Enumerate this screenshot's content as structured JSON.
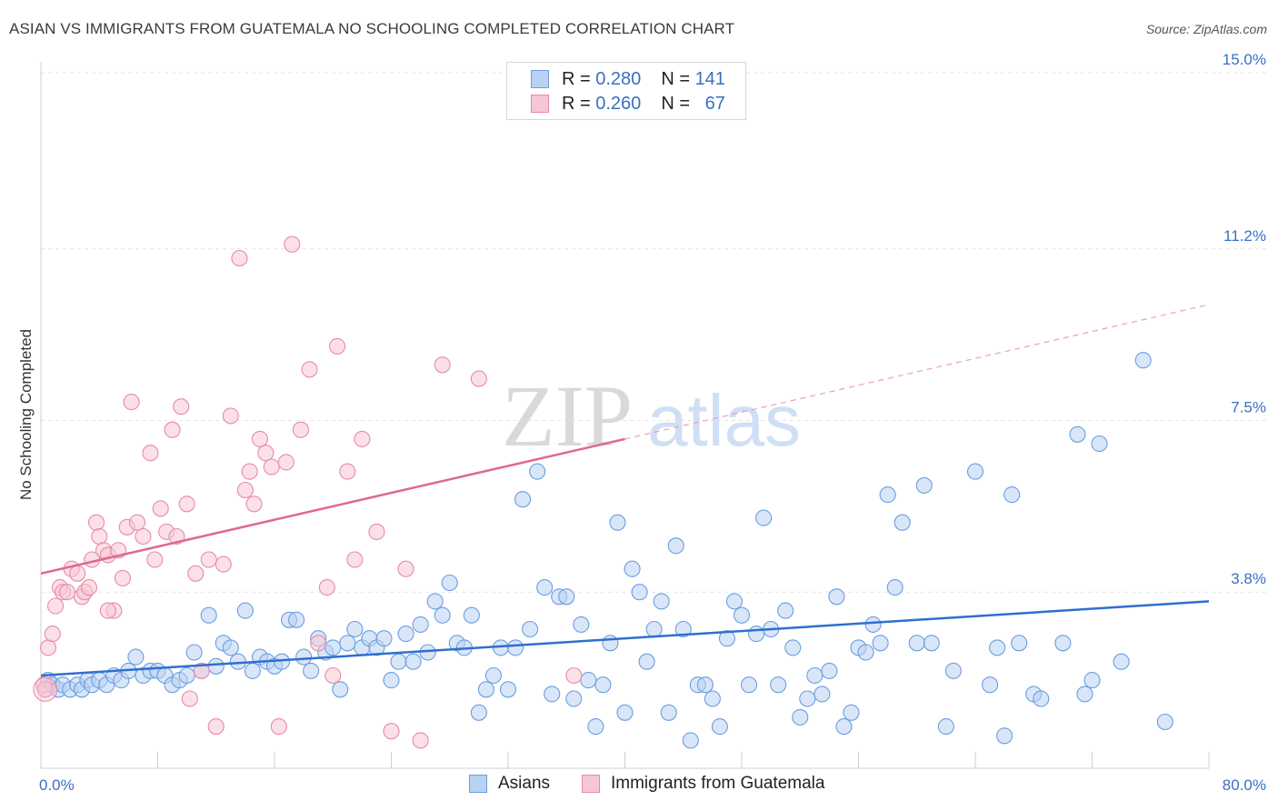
{
  "title": "ASIAN VS IMMIGRANTS FROM GUATEMALA NO SCHOOLING COMPLETED CORRELATION CHART",
  "source": "Source: ZipAtlas.com",
  "watermark": {
    "zip": "ZIP",
    "atlas": "atlas"
  },
  "stats": [
    {
      "r_label": "R =",
      "r_value": "0.280",
      "n_label": "N =",
      "n_value": "141"
    },
    {
      "r_label": "R =",
      "r_value": "0.260",
      "n_label": "N =",
      "n_value": "67"
    }
  ],
  "chart_data": {
    "type": "scatter",
    "ylabel": "No Schooling Completed",
    "xlim": [
      0,
      80
    ],
    "ylim": [
      0,
      15
    ],
    "x_tick_labels": [
      "0.0%",
      "80.0%"
    ],
    "y_ticks": [
      3.8,
      7.5,
      11.2,
      15.0
    ],
    "y_tick_labels": [
      "3.8%",
      "7.5%",
      "11.2%",
      "15.0%"
    ],
    "grid": true,
    "legend": "top-center",
    "series": [
      {
        "name": "Asians",
        "color": "#6a9ee0",
        "fill": "#b9d2f3",
        "trend": {
          "x0": 0,
          "y0": 2.0,
          "x1": 80,
          "y1": 3.6
        },
        "points": [
          [
            0.3,
            1.7
          ],
          [
            0.5,
            1.9
          ],
          [
            0.8,
            1.8
          ],
          [
            1.2,
            1.7
          ],
          [
            1.5,
            1.8
          ],
          [
            2.0,
            1.7
          ],
          [
            2.5,
            1.8
          ],
          [
            2.8,
            1.7
          ],
          [
            3.2,
            1.9
          ],
          [
            3.5,
            1.8
          ],
          [
            4.0,
            1.9
          ],
          [
            4.5,
            1.8
          ],
          [
            5.0,
            2.0
          ],
          [
            5.5,
            1.9
          ],
          [
            6.0,
            2.1
          ],
          [
            6.5,
            2.4
          ],
          [
            7.0,
            2.0
          ],
          [
            7.5,
            2.1
          ],
          [
            8.0,
            2.1
          ],
          [
            8.5,
            2.0
          ],
          [
            9.0,
            1.8
          ],
          [
            9.5,
            1.9
          ],
          [
            10.0,
            2.0
          ],
          [
            10.5,
            2.5
          ],
          [
            11.0,
            2.1
          ],
          [
            11.5,
            3.3
          ],
          [
            12.0,
            2.2
          ],
          [
            12.5,
            2.7
          ],
          [
            13.0,
            2.6
          ],
          [
            13.5,
            2.3
          ],
          [
            14.0,
            3.4
          ],
          [
            14.5,
            2.1
          ],
          [
            15.0,
            2.4
          ],
          [
            15.5,
            2.3
          ],
          [
            16.0,
            2.2
          ],
          [
            16.5,
            2.3
          ],
          [
            17.0,
            3.2
          ],
          [
            17.5,
            3.2
          ],
          [
            18.0,
            2.4
          ],
          [
            18.5,
            2.1
          ],
          [
            19.0,
            2.8
          ],
          [
            19.5,
            2.5
          ],
          [
            20.0,
            2.6
          ],
          [
            20.5,
            1.7
          ],
          [
            21.0,
            2.7
          ],
          [
            21.5,
            3.0
          ],
          [
            22.0,
            2.6
          ],
          [
            22.5,
            2.8
          ],
          [
            23.0,
            2.6
          ],
          [
            23.5,
            2.8
          ],
          [
            24.0,
            1.9
          ],
          [
            24.5,
            2.3
          ],
          [
            25.0,
            2.9
          ],
          [
            25.5,
            2.3
          ],
          [
            26.0,
            3.1
          ],
          [
            26.5,
            2.5
          ],
          [
            27.0,
            3.6
          ],
          [
            27.5,
            3.3
          ],
          [
            28.0,
            4.0
          ],
          [
            28.5,
            2.7
          ],
          [
            29.0,
            2.6
          ],
          [
            29.5,
            3.3
          ],
          [
            30.0,
            1.2
          ],
          [
            30.5,
            1.7
          ],
          [
            31.0,
            2.0
          ],
          [
            31.5,
            2.6
          ],
          [
            32.0,
            1.7
          ],
          [
            32.5,
            2.6
          ],
          [
            33.0,
            5.8
          ],
          [
            33.5,
            3.0
          ],
          [
            34.0,
            6.4
          ],
          [
            34.5,
            3.9
          ],
          [
            35.0,
            1.6
          ],
          [
            35.5,
            3.7
          ],
          [
            36.0,
            3.7
          ],
          [
            36.5,
            1.5
          ],
          [
            37.0,
            3.1
          ],
          [
            37.5,
            1.9
          ],
          [
            38.0,
            0.9
          ],
          [
            38.5,
            1.8
          ],
          [
            39.0,
            2.7
          ],
          [
            39.5,
            5.3
          ],
          [
            40.0,
            1.2
          ],
          [
            40.5,
            4.3
          ],
          [
            41.0,
            3.8
          ],
          [
            41.5,
            2.3
          ],
          [
            42.0,
            3.0
          ],
          [
            42.5,
            3.6
          ],
          [
            43.0,
            1.2
          ],
          [
            43.5,
            4.8
          ],
          [
            44.0,
            3.0
          ],
          [
            44.5,
            0.6
          ],
          [
            45.0,
            1.8
          ],
          [
            45.5,
            1.8
          ],
          [
            46.0,
            1.5
          ],
          [
            46.5,
            0.9
          ],
          [
            47.0,
            2.8
          ],
          [
            47.5,
            3.6
          ],
          [
            48.0,
            3.3
          ],
          [
            48.5,
            1.8
          ],
          [
            49.0,
            2.9
          ],
          [
            49.5,
            5.4
          ],
          [
            50.0,
            3.0
          ],
          [
            50.5,
            1.8
          ],
          [
            51.0,
            3.4
          ],
          [
            51.5,
            2.6
          ],
          [
            52.0,
            1.1
          ],
          [
            52.5,
            1.5
          ],
          [
            53.0,
            2.0
          ],
          [
            53.5,
            1.6
          ],
          [
            54.0,
            2.1
          ],
          [
            54.5,
            3.7
          ],
          [
            55.0,
            0.9
          ],
          [
            55.5,
            1.2
          ],
          [
            56.0,
            2.6
          ],
          [
            56.5,
            2.5
          ],
          [
            57.0,
            3.1
          ],
          [
            57.5,
            2.7
          ],
          [
            58.0,
            5.9
          ],
          [
            58.5,
            3.9
          ],
          [
            59.0,
            5.3
          ],
          [
            60.0,
            2.7
          ],
          [
            60.5,
            6.1
          ],
          [
            61.0,
            2.7
          ],
          [
            62.0,
            0.9
          ],
          [
            62.5,
            2.1
          ],
          [
            64.0,
            6.4
          ],
          [
            65.0,
            1.8
          ],
          [
            65.5,
            2.6
          ],
          [
            66.0,
            0.7
          ],
          [
            66.5,
            5.9
          ],
          [
            67.0,
            2.7
          ],
          [
            68.0,
            1.6
          ],
          [
            68.5,
            1.5
          ],
          [
            70.0,
            2.7
          ],
          [
            71.0,
            7.2
          ],
          [
            71.5,
            1.6
          ],
          [
            72.0,
            1.9
          ],
          [
            72.5,
            7.0
          ],
          [
            74.0,
            2.3
          ],
          [
            75.5,
            8.8
          ],
          [
            77.0,
            1.0
          ]
        ]
      },
      {
        "name": "Immigrants from Guatemala",
        "color": "#e88aa6",
        "fill": "#f7c6d4",
        "trend": {
          "x0": 0,
          "y0": 4.2,
          "x1": 40,
          "y1": 7.1
        },
        "trend_ext": {
          "x0": 40,
          "y0": 7.1,
          "x1": 80,
          "y1": 10.0
        },
        "points": [
          [
            0.2,
            1.8
          ],
          [
            0.3,
            1.7
          ],
          [
            0.5,
            2.6
          ],
          [
            0.8,
            2.9
          ],
          [
            1.0,
            3.5
          ],
          [
            1.3,
            3.9
          ],
          [
            1.5,
            3.8
          ],
          [
            1.8,
            3.8
          ],
          [
            2.1,
            4.3
          ],
          [
            2.5,
            4.2
          ],
          [
            2.8,
            3.7
          ],
          [
            3.0,
            3.8
          ],
          [
            3.3,
            3.9
          ],
          [
            3.5,
            4.5
          ],
          [
            3.8,
            5.3
          ],
          [
            4.0,
            5.0
          ],
          [
            4.3,
            4.7
          ],
          [
            4.6,
            4.6
          ],
          [
            5.0,
            3.4
          ],
          [
            5.3,
            4.7
          ],
          [
            5.6,
            4.1
          ],
          [
            5.9,
            5.2
          ],
          [
            6.2,
            7.9
          ],
          [
            6.6,
            5.3
          ],
          [
            7.0,
            5.0
          ],
          [
            7.5,
            6.8
          ],
          [
            7.8,
            4.5
          ],
          [
            8.2,
            5.6
          ],
          [
            8.6,
            5.1
          ],
          [
            9.0,
            7.3
          ],
          [
            9.3,
            5.0
          ],
          [
            9.6,
            7.8
          ],
          [
            10.0,
            5.7
          ],
          [
            10.6,
            4.2
          ],
          [
            11.0,
            2.1
          ],
          [
            11.5,
            4.5
          ],
          [
            12.0,
            0.9
          ],
          [
            12.5,
            4.4
          ],
          [
            13.0,
            7.6
          ],
          [
            13.6,
            11.0
          ],
          [
            14.0,
            6.0
          ],
          [
            14.3,
            6.4
          ],
          [
            14.6,
            5.7
          ],
          [
            15.0,
            7.1
          ],
          [
            15.4,
            6.8
          ],
          [
            15.8,
            6.5
          ],
          [
            16.3,
            0.9
          ],
          [
            16.8,
            6.6
          ],
          [
            17.2,
            11.3
          ],
          [
            17.8,
            7.3
          ],
          [
            18.4,
            8.6
          ],
          [
            19.0,
            2.7
          ],
          [
            19.6,
            3.9
          ],
          [
            20.0,
            2.0
          ],
          [
            20.3,
            9.1
          ],
          [
            21.0,
            6.4
          ],
          [
            21.5,
            4.5
          ],
          [
            22.0,
            7.1
          ],
          [
            23.0,
            5.1
          ],
          [
            24.0,
            0.8
          ],
          [
            25.0,
            4.3
          ],
          [
            26.0,
            0.6
          ],
          [
            27.5,
            8.7
          ],
          [
            30.0,
            8.4
          ],
          [
            10.2,
            1.5
          ],
          [
            36.5,
            2.0
          ],
          [
            4.6,
            3.4
          ]
        ]
      }
    ]
  },
  "legend": [
    {
      "label": "Asians"
    },
    {
      "label": "Immigrants from Guatemala"
    }
  ]
}
